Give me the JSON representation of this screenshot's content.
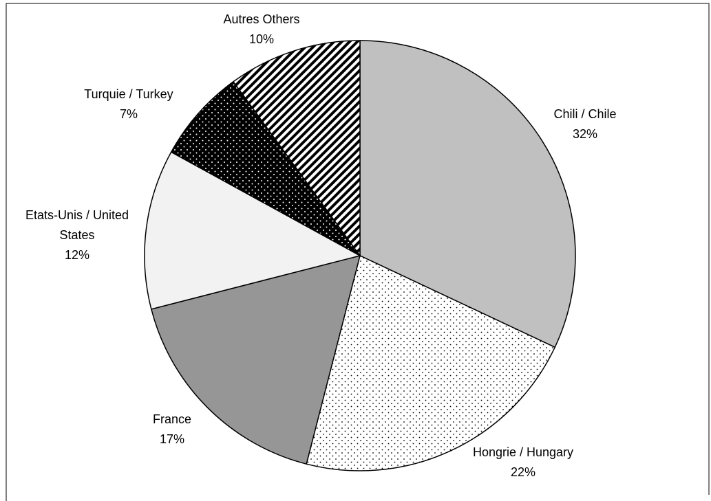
{
  "chart_data": {
    "type": "pie",
    "categories": [
      "Chili / Chile",
      "Hongrie / Hungary",
      "France",
      "Etats-Unis / United States",
      "Turquie / Turkey",
      "Autres Others"
    ],
    "values": [
      32,
      22,
      17,
      12,
      7,
      10
    ],
    "value_labels": [
      "32%",
      "22%",
      "17%",
      "12%",
      "7%",
      "10%"
    ],
    "colors": [
      "#c0c0c0",
      "#ffffff",
      "#969696",
      "#f2f2f2",
      "#000000",
      "#ffffff"
    ],
    "patterns": [
      "solid",
      "dots",
      "solid",
      "solid",
      "dots",
      "stripes"
    ]
  }
}
